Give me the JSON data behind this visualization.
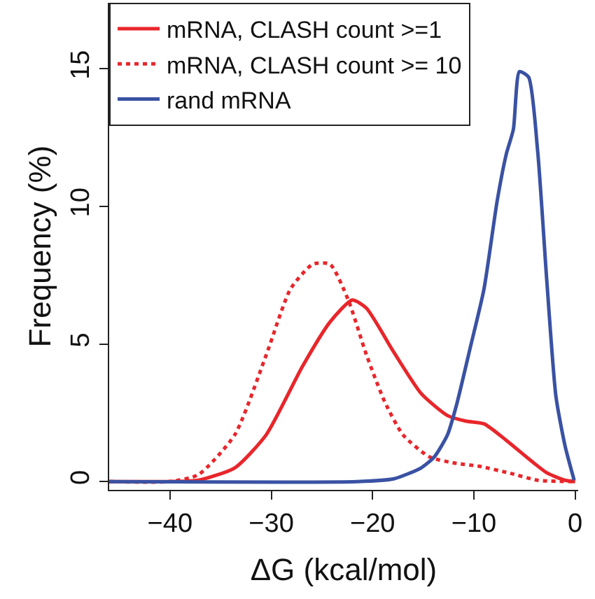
{
  "chart_data": {
    "type": "line",
    "xlabel": "ΔG (kcal/mol)",
    "ylabel": "Frequency (%)",
    "xlim": [
      -46,
      0.3
    ],
    "xticks": [
      -40,
      -30,
      -20,
      -10,
      0
    ],
    "ylim": [
      -0.3,
      17.4
    ],
    "yticks": [
      0,
      5,
      10,
      15
    ],
    "legend": "top left",
    "marker": "none",
    "series": [
      {
        "name": "mRNA, CLASH count >=1",
        "color": "#e8262b",
        "line_style": "solid",
        "x": [
          -46,
          -40,
          -37.2,
          -33.6,
          -30.5,
          -26.9,
          -24.2,
          -22.0,
          -20.6,
          -17.9,
          -15.2,
          -12.6,
          -10.8,
          -9.0,
          -6.8,
          -4.6,
          -2.8,
          -1.0,
          0
        ],
        "values": [
          0,
          0,
          0.05,
          0.5,
          1.7,
          4.2,
          5.8,
          6.6,
          6.3,
          4.7,
          3.2,
          2.4,
          2.2,
          2.1,
          1.5,
          0.83,
          0.32,
          0.05,
          0
        ]
      },
      {
        "name": "mRNA, CLASH count >= 10",
        "color": "#e8262b",
        "line_style": "dotted",
        "x": [
          -46,
          -40.1,
          -37.2,
          -33.6,
          -30.5,
          -28.1,
          -25.9,
          -24.2,
          -22.4,
          -20.6,
          -18.8,
          -17.0,
          -14.4,
          -11.7,
          -9.5,
          -6.4,
          -3.7,
          0
        ],
        "values": [
          0,
          0,
          0.25,
          1.7,
          4.6,
          7.0,
          7.9,
          7.9,
          6.6,
          4.6,
          2.9,
          1.7,
          0.9,
          0.66,
          0.56,
          0.3,
          0.05,
          0
        ]
      },
      {
        "name": "rand mRNA",
        "color": "#3a52a3",
        "line_style": "solid",
        "x": [
          -46,
          -21.5,
          -17.9,
          -15.2,
          -13.9,
          -12.6,
          -11.7,
          -10.4,
          -9.0,
          -7.7,
          -6.8,
          -6.1,
          -5.5,
          -4.6,
          -3.7,
          -2.8,
          -1.9,
          -1.0,
          -0.1
        ],
        "values": [
          0,
          0,
          0.1,
          0.5,
          0.9,
          1.7,
          2.8,
          4.8,
          7.0,
          10.2,
          11.9,
          12.8,
          14.9,
          14.7,
          12.0,
          7.3,
          3.1,
          1.3,
          0.05
        ]
      }
    ]
  }
}
